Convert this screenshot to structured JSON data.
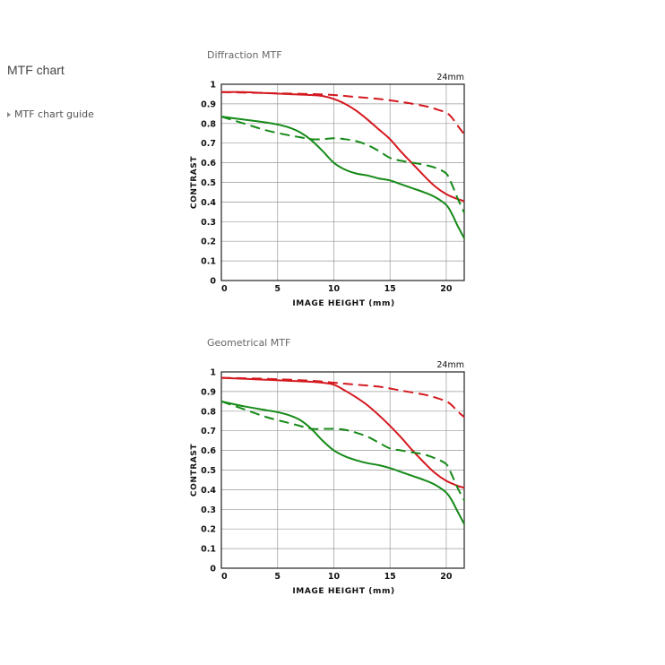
{
  "sidebar": {
    "title": "MTF chart",
    "link": "MTF chart guide"
  },
  "colors": {
    "sagittal": "#d4181e",
    "meridional": "#168a18",
    "grid": "#999999"
  },
  "chart_data": [
    {
      "type": "line",
      "caption": "Diffraction MTF",
      "focal_label": "24mm",
      "xlabel": "IMAGE HEIGHT (mm)",
      "ylabel": "CONTRAST",
      "xlim": [
        0,
        21.6
      ],
      "ylim": [
        0,
        1
      ],
      "xticks": [
        0,
        5,
        10,
        15,
        20
      ],
      "yticks": [
        0,
        0.1,
        0.2,
        0.3,
        0.4,
        0.5,
        0.6,
        0.7,
        0.8,
        0.9,
        1
      ],
      "ytick_labels": [
        "0",
        "0.1",
        "0.2",
        "0.3",
        "0.4",
        "0.5",
        "0.6",
        "0.7",
        "0.8",
        "0.9",
        "1"
      ],
      "grid": true,
      "series": [
        {
          "color": "sagittal",
          "dash": false,
          "x": [
            0,
            2,
            4,
            6,
            8,
            9,
            10,
            11,
            12,
            13,
            14,
            15,
            16,
            17,
            18,
            19,
            20,
            21,
            21.6
          ],
          "y": [
            0.96,
            0.96,
            0.955,
            0.95,
            0.945,
            0.94,
            0.925,
            0.9,
            0.865,
            0.82,
            0.77,
            0.72,
            0.655,
            0.595,
            0.535,
            0.48,
            0.44,
            0.415,
            0.405
          ]
        },
        {
          "color": "sagittal",
          "dash": true,
          "x": [
            0,
            4,
            8,
            10,
            12,
            14,
            16,
            18,
            19,
            20,
            20.5,
            21,
            21.6
          ],
          "y": [
            0.96,
            0.955,
            0.95,
            0.945,
            0.935,
            0.925,
            0.91,
            0.89,
            0.875,
            0.855,
            0.83,
            0.79,
            0.745
          ]
        },
        {
          "color": "meridional",
          "dash": false,
          "x": [
            0,
            2,
            4,
            5,
            6,
            7,
            8,
            9,
            10,
            11,
            12,
            13,
            14,
            15,
            16,
            17,
            18,
            19,
            20,
            20.5,
            21,
            21.6
          ],
          "y": [
            0.835,
            0.82,
            0.805,
            0.795,
            0.78,
            0.755,
            0.715,
            0.66,
            0.6,
            0.565,
            0.545,
            0.535,
            0.52,
            0.51,
            0.49,
            0.47,
            0.45,
            0.425,
            0.385,
            0.34,
            0.28,
            0.215
          ]
        },
        {
          "color": "meridional",
          "dash": true,
          "x": [
            0,
            2,
            4,
            6,
            7,
            8,
            9,
            10,
            11,
            12,
            13,
            14,
            15,
            16,
            17,
            18,
            19,
            20,
            20.5,
            21,
            21.6
          ],
          "y": [
            0.835,
            0.8,
            0.765,
            0.74,
            0.73,
            0.72,
            0.72,
            0.725,
            0.72,
            0.71,
            0.69,
            0.66,
            0.625,
            0.61,
            0.6,
            0.59,
            0.575,
            0.545,
            0.49,
            0.42,
            0.345
          ]
        }
      ]
    },
    {
      "type": "line",
      "caption": "Geometrical MTF",
      "focal_label": "24mm",
      "xlabel": "IMAGE HEIGHT (mm)",
      "ylabel": "CONTRAST",
      "xlim": [
        0,
        21.6
      ],
      "ylim": [
        0,
        1
      ],
      "xticks": [
        0,
        5,
        10,
        15,
        20
      ],
      "yticks": [
        0,
        0.1,
        0.2,
        0.3,
        0.4,
        0.5,
        0.6,
        0.7,
        0.8,
        0.9,
        1
      ],
      "ytick_labels": [
        "0",
        "0.1",
        "0.2",
        "0.3",
        "0.4",
        "0.5",
        "0.6",
        "0.7",
        "0.8",
        "0.9",
        "1"
      ],
      "grid": true,
      "series": [
        {
          "color": "sagittal",
          "dash": false,
          "x": [
            0,
            2,
            4,
            6,
            8,
            9,
            10,
            11,
            12,
            13,
            14,
            15,
            16,
            17,
            18,
            19,
            20,
            21,
            21.6
          ],
          "y": [
            0.97,
            0.965,
            0.96,
            0.955,
            0.95,
            0.945,
            0.935,
            0.905,
            0.87,
            0.83,
            0.78,
            0.725,
            0.665,
            0.6,
            0.54,
            0.485,
            0.445,
            0.42,
            0.41
          ]
        },
        {
          "color": "sagittal",
          "dash": true,
          "x": [
            0,
            4,
            8,
            10,
            12,
            14,
            16,
            18,
            19,
            20,
            20.5,
            21,
            21.6
          ],
          "y": [
            0.97,
            0.965,
            0.955,
            0.945,
            0.935,
            0.925,
            0.905,
            0.885,
            0.87,
            0.85,
            0.83,
            0.8,
            0.77
          ]
        },
        {
          "color": "meridional",
          "dash": false,
          "x": [
            0,
            2,
            4,
            5,
            6,
            7,
            8,
            9,
            10,
            11,
            12,
            13,
            14,
            15,
            16,
            17,
            18,
            19,
            20,
            20.5,
            21,
            21.6
          ],
          "y": [
            0.85,
            0.825,
            0.805,
            0.795,
            0.78,
            0.755,
            0.71,
            0.65,
            0.6,
            0.57,
            0.55,
            0.535,
            0.525,
            0.51,
            0.49,
            0.47,
            0.45,
            0.425,
            0.385,
            0.345,
            0.29,
            0.225
          ]
        },
        {
          "color": "meridional",
          "dash": true,
          "x": [
            0,
            2,
            4,
            6,
            7,
            8,
            9,
            10,
            11,
            12,
            13,
            14,
            15,
            16,
            17,
            18,
            19,
            20,
            20.5,
            21,
            21.6
          ],
          "y": [
            0.85,
            0.81,
            0.77,
            0.74,
            0.725,
            0.71,
            0.71,
            0.71,
            0.705,
            0.69,
            0.67,
            0.64,
            0.61,
            0.6,
            0.59,
            0.58,
            0.56,
            0.53,
            0.475,
            0.41,
            0.345
          ]
        }
      ]
    }
  ]
}
